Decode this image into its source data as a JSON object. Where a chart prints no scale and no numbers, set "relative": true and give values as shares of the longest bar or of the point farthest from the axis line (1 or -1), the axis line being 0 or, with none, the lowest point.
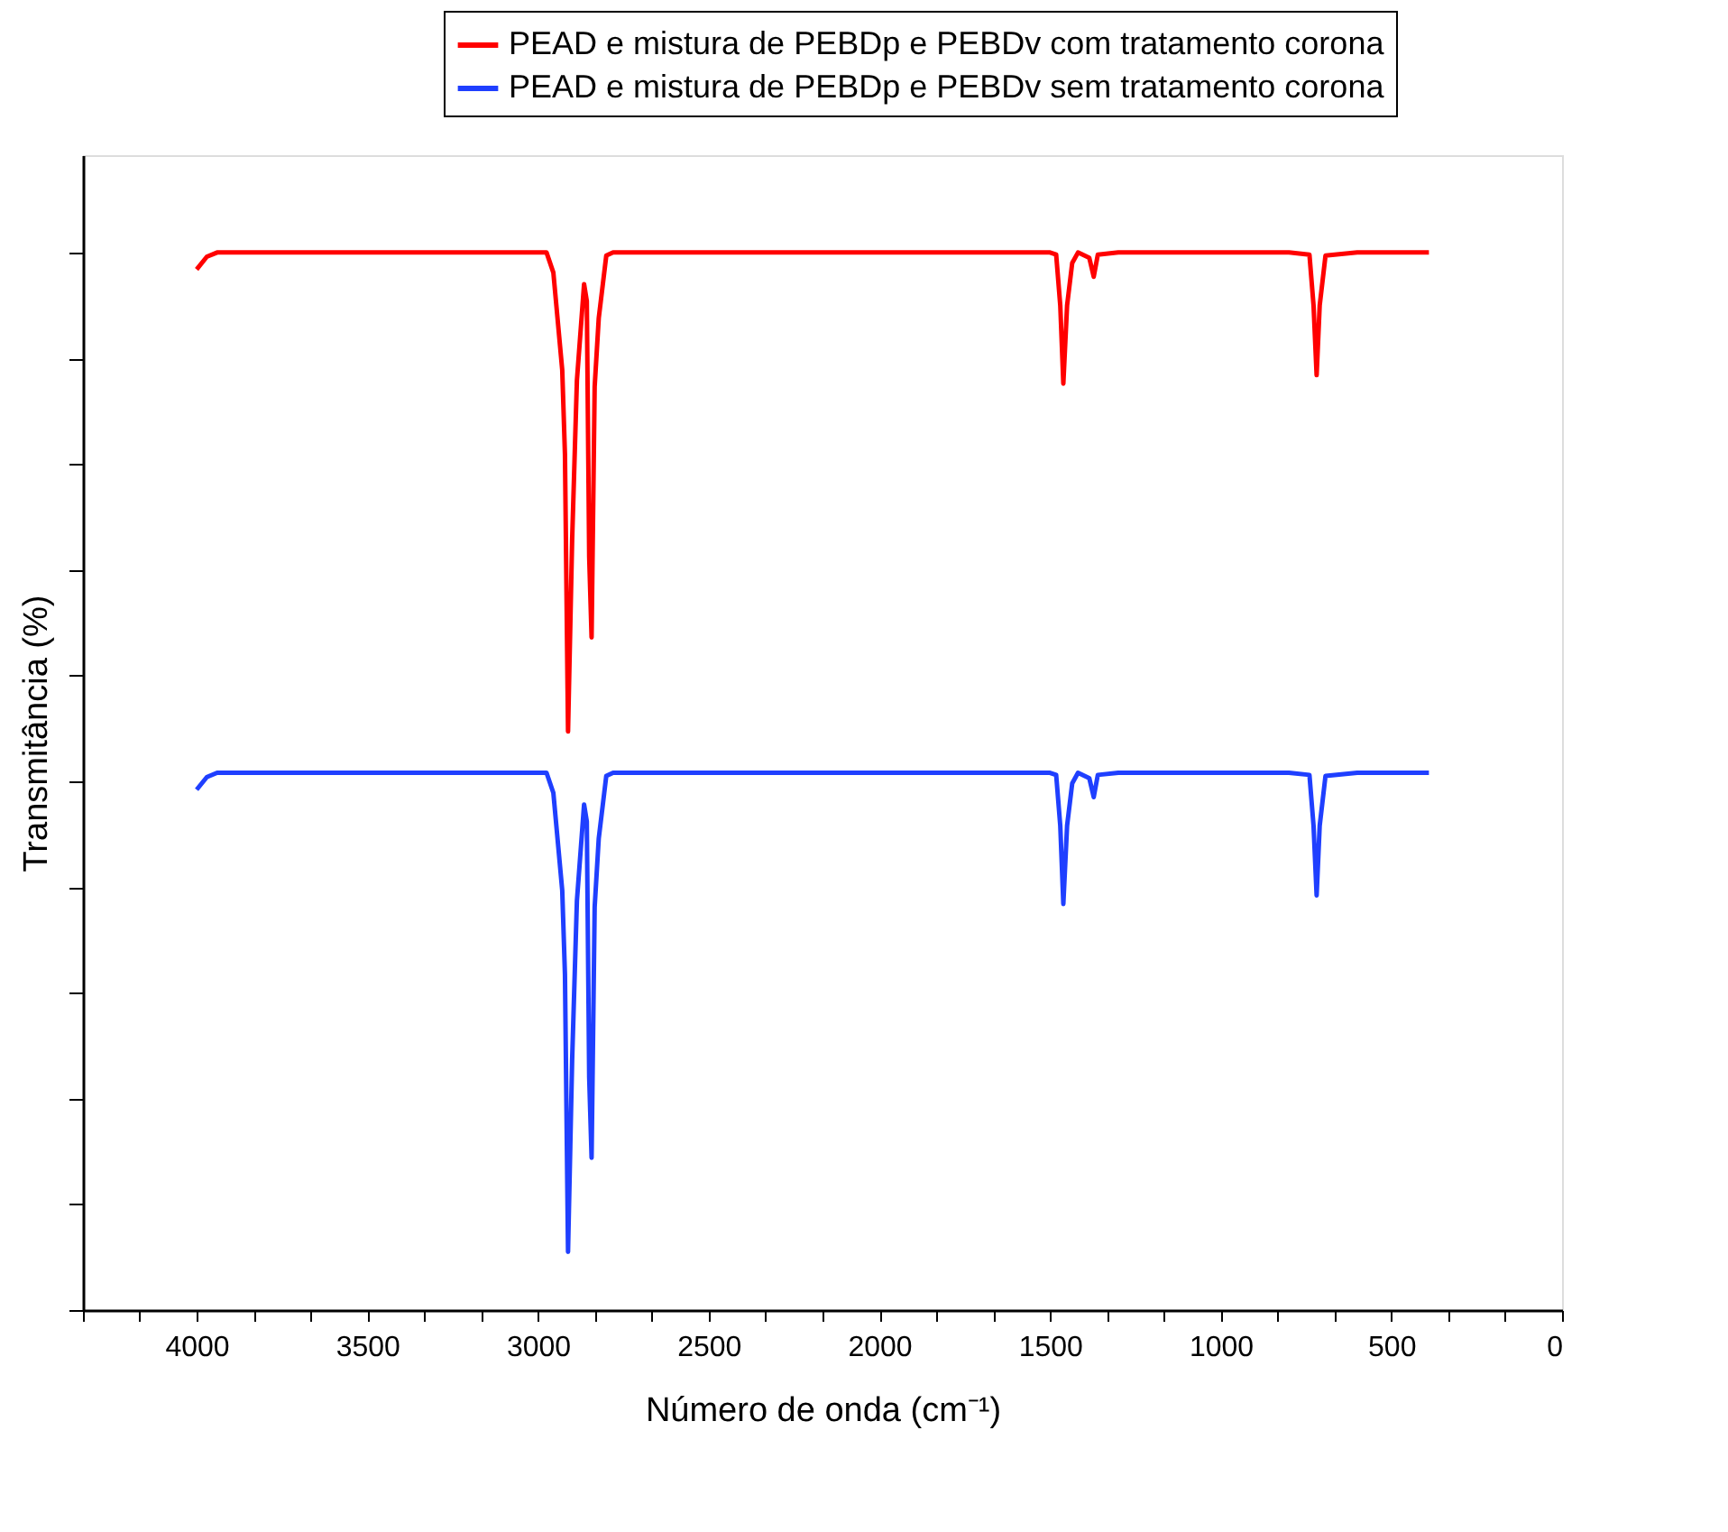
{
  "chart_data": {
    "type": "line",
    "relative": true,
    "xlabel": "Número de onda (cm⁻¹)",
    "ylabel": "Transmitância (%)",
    "xlim": [
      4333,
      0
    ],
    "xticks": [
      {
        "value": 4333,
        "label": null
      },
      {
        "value": 4167,
        "label": null
      },
      4000,
      {
        "value": 3833,
        "label": null
      },
      {
        "value": 3667,
        "label": null
      },
      3500,
      {
        "value": 3333,
        "label": null
      },
      {
        "value": 3167,
        "label": null
      },
      3000,
      {
        "value": 2833,
        "label": null
      },
      {
        "value": 2667,
        "label": null
      },
      2500,
      {
        "value": 2333,
        "label": null
      },
      {
        "value": 2167,
        "label": null
      },
      2000,
      {
        "value": 1833,
        "label": null
      },
      {
        "value": 1667,
        "label": null
      },
      1500,
      {
        "value": 1333,
        "label": null
      },
      {
        "value": 1167,
        "label": null
      },
      1000,
      {
        "value": 833,
        "label": null
      },
      {
        "value": 667,
        "label": null
      },
      500,
      {
        "value": 333,
        "label": null
      },
      {
        "value": 167,
        "label": null
      },
      0
    ],
    "tick_labels": "x",
    "grid": false,
    "legend": "top right",
    "line_style": "solid",
    "marker": "none",
    "x": [
      4000,
      3970,
      3940,
      3500,
      3000,
      2975,
      2955,
      2929,
      2921,
      2912,
      2900,
      2886,
      2865,
      2857,
      2850,
      2843,
      2834,
      2822,
      2800,
      2780,
      2000,
      1500,
      1482,
      1470,
      1461,
      1450,
      1435,
      1418,
      1385,
      1372,
      1360,
      1300,
      800,
      740,
      728,
      719,
      710,
      693,
      600,
      390
    ],
    "series": [
      {
        "name": "PEAD e mistura de PEBDp e PEBDv com tratamento corona",
        "color": "#ff0000",
        "values": [
          0.984,
          0.996,
          1.0,
          1.0,
          1.0,
          1.0,
          0.981,
          0.889,
          0.809,
          0.547,
          0.728,
          0.879,
          0.97,
          0.954,
          0.712,
          0.636,
          0.873,
          0.938,
          0.997,
          1.0,
          1.0,
          1.0,
          0.998,
          0.95,
          0.876,
          0.95,
          0.99,
          1.0,
          0.995,
          0.977,
          0.998,
          1.0,
          1.0,
          0.998,
          0.95,
          0.884,
          0.95,
          0.997,
          1.0,
          1.0
        ]
      },
      {
        "name": "PEAD e mistura de PEBDp e PEBDv sem tratamento corona",
        "color": "#1f3fff",
        "values": [
          0.492,
          0.504,
          0.508,
          0.508,
          0.508,
          0.508,
          0.489,
          0.397,
          0.317,
          0.055,
          0.236,
          0.387,
          0.478,
          0.462,
          0.22,
          0.144,
          0.381,
          0.446,
          0.505,
          0.508,
          0.508,
          0.508,
          0.506,
          0.458,
          0.384,
          0.458,
          0.498,
          0.508,
          0.503,
          0.485,
          0.506,
          0.508,
          0.508,
          0.506,
          0.458,
          0.392,
          0.458,
          0.505,
          0.508,
          0.508
        ]
      }
    ]
  }
}
